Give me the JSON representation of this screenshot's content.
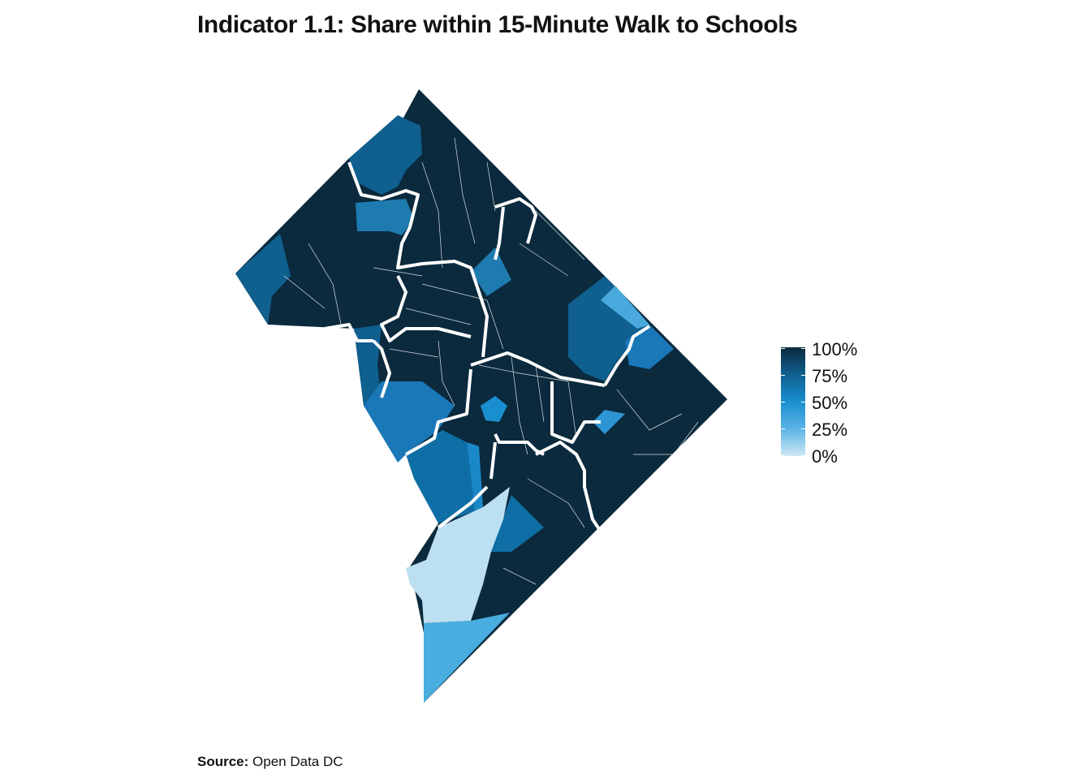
{
  "title": "Indicator 1.1: Share within 15-Minute Walk to Schools",
  "legend": {
    "labels": [
      "100%",
      "75%",
      "50%",
      "25%",
      "0%"
    ],
    "min": 0,
    "max": 100
  },
  "source": {
    "label": "Source:",
    "text": "Open Data DC"
  },
  "colors": {
    "high": "#0b2a3d",
    "mid_high": "#0f5f8f",
    "mid": "#1a8fd0",
    "mid_low": "#5bb4e4",
    "low": "#cfe6f5",
    "boundary": "#ffffff"
  }
}
